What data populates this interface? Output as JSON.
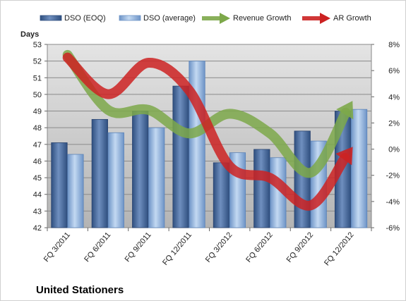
{
  "chart_data": {
    "type": "bar",
    "title": "United Stationers",
    "ylabel": "Days",
    "categories": [
      "FQ 3/2011",
      "FQ 6/2011",
      "FQ 9/2011",
      "FQ 12/2011",
      "FQ 3/2012",
      "FQ 6/2012",
      "FQ 9/2012",
      "FQ 12/2012"
    ],
    "ylim": [
      42,
      53
    ],
    "y2lim": [
      -6,
      8
    ],
    "yticks": [
      "42",
      "43",
      "44",
      "45",
      "46",
      "47",
      "48",
      "49",
      "50",
      "51",
      "52",
      "53"
    ],
    "y2ticks": [
      "-6%",
      "-4%",
      "-2%",
      "0%",
      "2%",
      "4%",
      "6%",
      "8%"
    ],
    "grid": true,
    "legend_position": "top",
    "series": [
      {
        "name": "DSO (EOQ)",
        "type": "bar",
        "axis": "left",
        "color": "#4a6d9c",
        "values": [
          47.1,
          48.5,
          49.0,
          50.5,
          45.9,
          46.7,
          47.8,
          49.0
        ]
      },
      {
        "name": "DSO (average)",
        "type": "bar",
        "axis": "left",
        "color": "#8fb3df",
        "values": [
          46.4,
          47.7,
          48.0,
          52.0,
          46.5,
          46.2,
          47.2,
          49.1
        ]
      },
      {
        "name": "Revenue Growth",
        "type": "line",
        "axis": "right",
        "unit": "%",
        "color": "#7da84a",
        "values": [
          7.2,
          3.0,
          3.0,
          1.2,
          2.7,
          1.2,
          -1.8,
          3.5
        ]
      },
      {
        "name": "AR Growth",
        "type": "line",
        "axis": "right",
        "unit": "%",
        "color": "#cc2222",
        "values": [
          7.0,
          4.2,
          6.6,
          4.5,
          -1.3,
          -2.2,
          -4.3,
          0.0
        ]
      }
    ]
  }
}
